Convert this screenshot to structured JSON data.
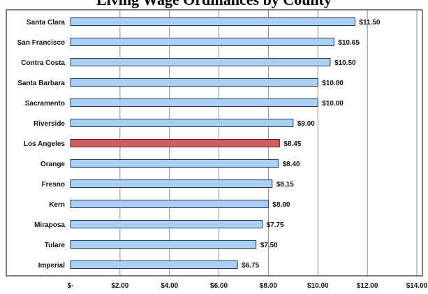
{
  "chart_data": {
    "type": "bar",
    "orientation": "horizontal",
    "title": "Living Wage Ordinances by County",
    "categories": [
      "Santa Clara",
      "San Francisco",
      "Contra Costa",
      "Santa Barbara",
      "Sacramento",
      "Riverside",
      "Los Angeles",
      "Orange",
      "Fresno",
      "Kern",
      "Miraposa",
      "Tulare",
      "Imperial"
    ],
    "values": [
      11.5,
      10.65,
      10.5,
      10.0,
      10.0,
      9.0,
      8.45,
      8.4,
      8.15,
      8.0,
      7.75,
      7.5,
      6.75
    ],
    "value_labels": [
      "$11.50",
      "$10.65",
      "$10.50",
      "$10.00",
      "$10.00",
      "$9.00",
      "$8.45",
      "$8.40",
      "$8.15",
      "$8.00",
      "$7.75",
      "$7.50",
      "$6.75"
    ],
    "xlim": [
      0,
      14
    ],
    "x_ticks": [
      0,
      2,
      4,
      6,
      8,
      10,
      12,
      14
    ],
    "x_tick_labels": [
      "$-",
      "$2.00",
      "$4.00",
      "$6.00",
      "$8.00",
      "$10.00",
      "$12.00",
      "$14.00"
    ],
    "grid": true,
    "highlight_category": "Los Angeles",
    "colors": {
      "bar": "#a9cff2",
      "bar_border": "#1f3f73",
      "highlight": "#cf5f5f",
      "highlight_border": "#6a1a1a",
      "gridline": "#909090",
      "plot_border": "#000000"
    }
  }
}
